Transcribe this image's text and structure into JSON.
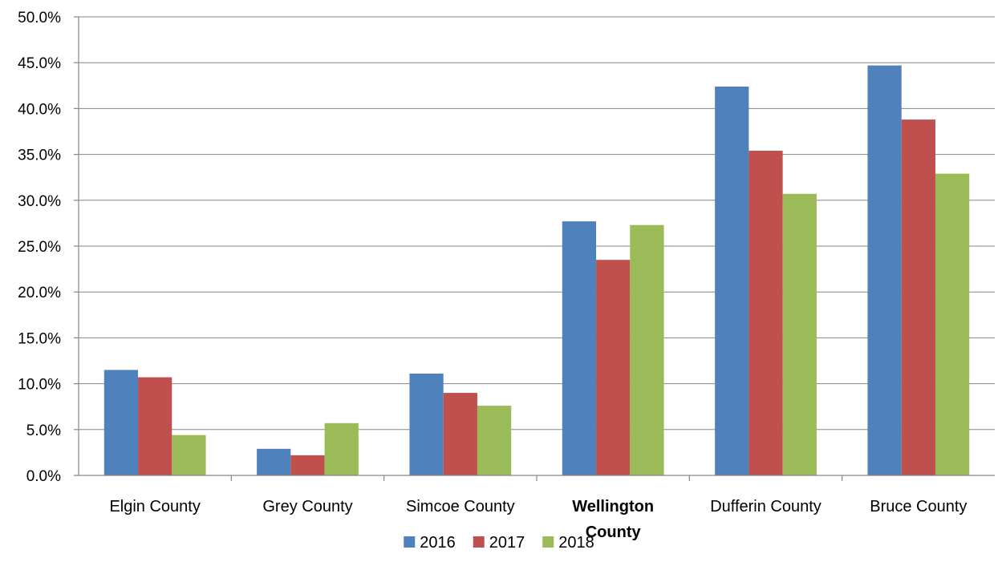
{
  "chart_data": {
    "type": "bar",
    "title": "",
    "xlabel": "",
    "ylabel": "",
    "ylim": [
      0,
      50
    ],
    "y_tick_step": 5,
    "y_tick_labels": [
      "0.0%",
      "5.0%",
      "10.0%",
      "15.0%",
      "20.0%",
      "25.0%",
      "30.0%",
      "35.0%",
      "40.0%",
      "45.0%",
      "50.0%"
    ],
    "grid": true,
    "legend_position": "bottom",
    "categories": [
      {
        "label": "Elgin County",
        "bold": false
      },
      {
        "label": "Grey County",
        "bold": false
      },
      {
        "label": "Simcoe County",
        "bold": false
      },
      {
        "label": "Wellington County",
        "bold": true
      },
      {
        "label": "Dufferin County",
        "bold": false
      },
      {
        "label": "Bruce County",
        "bold": false
      }
    ],
    "series": [
      {
        "name": "2016",
        "color": "#4F81BD",
        "values": [
          11.5,
          2.9,
          11.1,
          27.7,
          42.4,
          44.7
        ]
      },
      {
        "name": "2017",
        "color": "#C0504D",
        "values": [
          10.7,
          2.2,
          9.0,
          23.5,
          35.4,
          38.8
        ]
      },
      {
        "name": "2018",
        "color": "#9BBB59",
        "values": [
          4.4,
          5.7,
          7.6,
          27.3,
          30.7,
          32.9
        ]
      }
    ]
  }
}
